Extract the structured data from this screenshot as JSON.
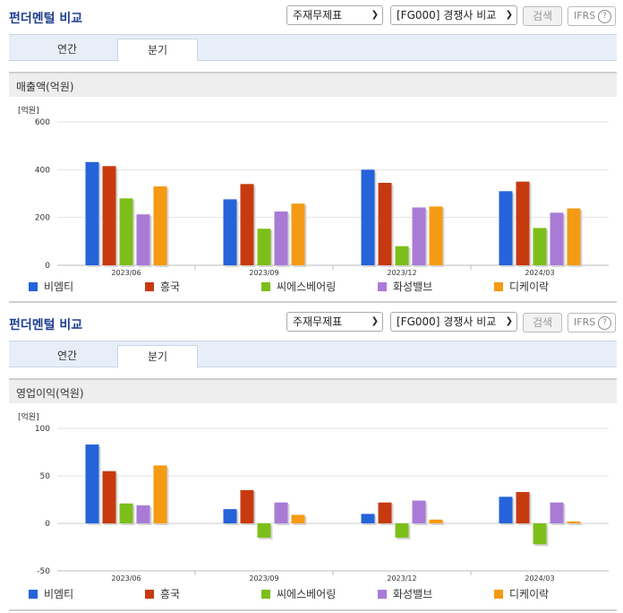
{
  "sections": [
    {
      "title": "펀더멘털 비교",
      "select1": "주재무제표",
      "select2": "[FG000] 경쟁사 비교",
      "search_label": "검색",
      "ifrs_label": "IFRS",
      "ifrs_help": "?",
      "tabs": [
        {
          "label": "연간"
        },
        {
          "label": "분기"
        }
      ],
      "active_tab": 1,
      "chart_title": "매출액(억원)"
    },
    {
      "title": "펀더멘털 비교",
      "select1": "주재무제표",
      "select2": "[FG000] 경쟁사 비교",
      "search_label": "검색",
      "ifrs_label": "IFRS",
      "ifrs_help": "?",
      "tabs": [
        {
          "label": "연간"
        },
        {
          "label": "분기"
        }
      ],
      "active_tab": 1,
      "chart_title": "영업이익(억원)"
    }
  ],
  "colors": {
    "비엠티": "#2563d9",
    "흥국": "#c73a10",
    "씨에스베어링": "#7cbf1a",
    "화성밸브": "#a97bd6",
    "디케이락": "#f59a13",
    "title": "#1f3f8f"
  },
  "chart_data": [
    {
      "type": "bar",
      "unit_label": "[억원]",
      "categories": [
        "2023/06",
        "2023/09",
        "2023/12",
        "2024/03"
      ],
      "ylim": [
        0,
        600
      ],
      "yticks": [
        0,
        200,
        400,
        600
      ],
      "grid": true,
      "legend": "bottom",
      "series": [
        {
          "name": "비엠티",
          "values": [
            432,
            276,
            400,
            310
          ]
        },
        {
          "name": "흥국",
          "values": [
            415,
            340,
            345,
            350
          ]
        },
        {
          "name": "씨에스베어링",
          "values": [
            280,
            153,
            80,
            156
          ]
        },
        {
          "name": "화성밸브",
          "values": [
            213,
            225,
            242,
            220
          ]
        },
        {
          "name": "디케이락",
          "values": [
            330,
            258,
            246,
            238
          ]
        }
      ]
    },
    {
      "type": "bar",
      "unit_label": "[억원]",
      "categories": [
        "2023/06",
        "2023/09",
        "2023/12",
        "2024/03"
      ],
      "ylim": [
        -50,
        100
      ],
      "yticks": [
        -50,
        0,
        50,
        100
      ],
      "grid": true,
      "legend": "bottom",
      "series": [
        {
          "name": "비엠티",
          "values": [
            83,
            15,
            10,
            28
          ]
        },
        {
          "name": "흥국",
          "values": [
            55,
            35,
            22,
            33
          ]
        },
        {
          "name": "씨에스베어링",
          "values": [
            21,
            -15,
            -15,
            -22
          ]
        },
        {
          "name": "화성밸브",
          "values": [
            19,
            22,
            24,
            22
          ]
        },
        {
          "name": "디케이락",
          "values": [
            61,
            9,
            4,
            2
          ]
        }
      ]
    }
  ]
}
